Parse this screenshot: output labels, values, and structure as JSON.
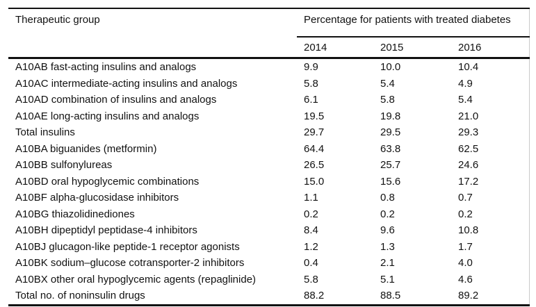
{
  "colors": {
    "background": "#ffffff",
    "text": "#111111",
    "rule": "#000000",
    "side_border": "#c9c9c9"
  },
  "chart_data": {
    "type": "table",
    "col1_header": "Therapeutic group",
    "group_header": "Percentage for patients with treated diabetes",
    "year_headers": [
      "2014",
      "2015",
      "2016"
    ],
    "rows": [
      {
        "label": "A10AB fast-acting insulins and analogs",
        "values": [
          "9.9",
          "10.0",
          "10.4"
        ]
      },
      {
        "label": "A10AC intermediate-acting insulins and analogs",
        "values": [
          "5.8",
          "5.4",
          "4.9"
        ]
      },
      {
        "label": "A10AD combination of insulins and analogs",
        "values": [
          "6.1",
          "5.8",
          "5.4"
        ]
      },
      {
        "label": "A10AE long-acting insulins and analogs",
        "values": [
          "19.5",
          "19.8",
          "21.0"
        ]
      },
      {
        "label": "Total insulins",
        "values": [
          "29.7",
          "29.5",
          "29.3"
        ]
      },
      {
        "label": "A10BA biguanides (metformin)",
        "values": [
          "64.4",
          "63.8",
          "62.5"
        ]
      },
      {
        "label": "A10BB sulfonylureas",
        "values": [
          "26.5",
          "25.7",
          "24.6"
        ]
      },
      {
        "label": "A10BD oral hypoglycemic combinations",
        "values": [
          "15.0",
          "15.6",
          "17.2"
        ]
      },
      {
        "label": "A10BF alpha-glucosidase inhibitors",
        "values": [
          "1.1",
          "0.8",
          "0.7"
        ]
      },
      {
        "label": "A10BG thiazolidinediones",
        "values": [
          "0.2",
          "0.2",
          "0.2"
        ]
      },
      {
        "label": "A10BH dipeptidyl peptidase-4 inhibitors",
        "values": [
          "8.4",
          "9.6",
          "10.8"
        ]
      },
      {
        "label": "A10BJ glucagon-like peptide-1 receptor agonists",
        "values": [
          "1.2",
          "1.3",
          "1.7"
        ]
      },
      {
        "label": "A10BK sodium–glucose cotransporter-2 inhibitors",
        "values": [
          "0.4",
          "2.1",
          "4.0"
        ]
      },
      {
        "label": "A10BX other oral hypoglycemic agents (repaglinide)",
        "values": [
          "5.8",
          "5.1",
          "4.6"
        ]
      },
      {
        "label": "Total no. of noninsulin drugs",
        "values": [
          "88.2",
          "88.5",
          "89.2"
        ]
      }
    ]
  }
}
